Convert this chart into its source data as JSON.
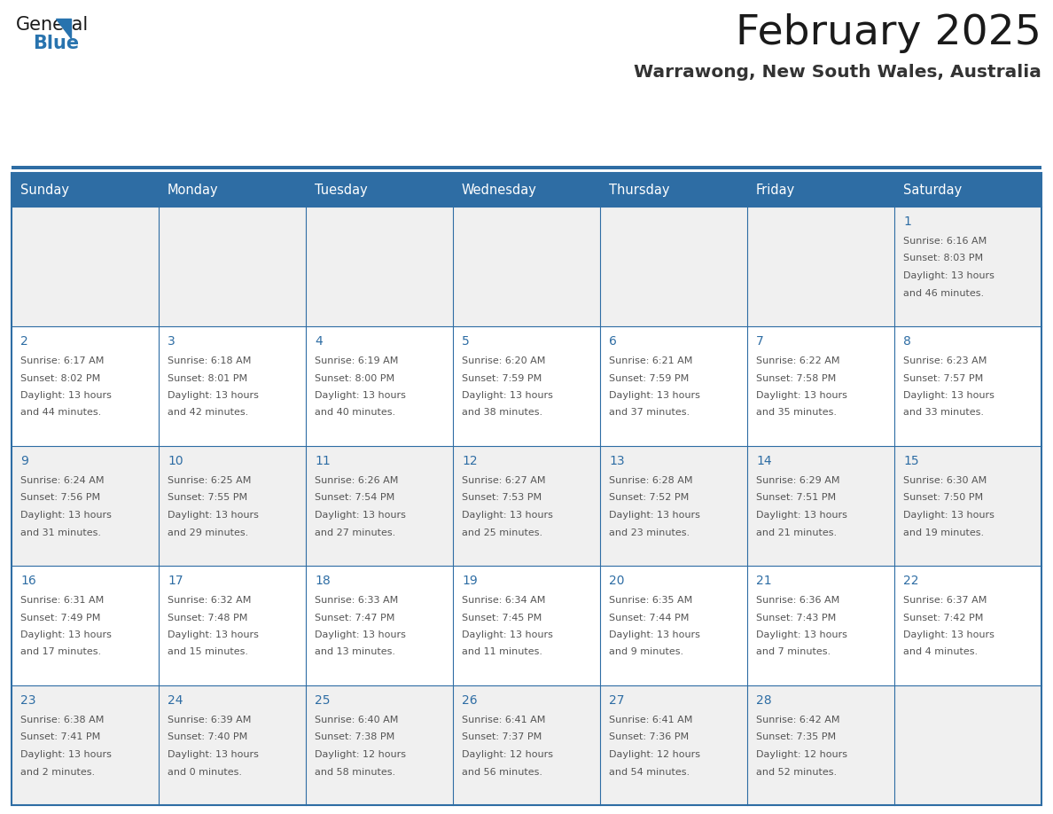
{
  "title": "February 2025",
  "subtitle": "Warrawong, New South Wales, Australia",
  "days_of_week": [
    "Sunday",
    "Monday",
    "Tuesday",
    "Wednesday",
    "Thursday",
    "Friday",
    "Saturday"
  ],
  "header_bg": "#2E6DA4",
  "header_text": "#FFFFFF",
  "cell_bg_row0": "#F0F0F0",
  "cell_bg_row1": "#FFFFFF",
  "cell_bg_row2": "#F0F0F0",
  "cell_bg_row3": "#FFFFFF",
  "cell_bg_row4": "#F0F0F0",
  "border_color": "#2E6DA4",
  "day_num_color": "#2E6DA4",
  "text_color": "#555555",
  "title_color": "#1a1a1a",
  "subtitle_color": "#333333",
  "logo_general_color": "#1a1a1a",
  "logo_blue_color": "#2873AE",
  "fig_width": 11.88,
  "fig_height": 9.18,
  "dpi": 100,
  "calendar_data": [
    {
      "day": 1,
      "col": 6,
      "row": 0,
      "sunrise": "6:16 AM",
      "sunset": "8:03 PM",
      "daylight_h": "13 hours",
      "daylight_m": "and 46 minutes."
    },
    {
      "day": 2,
      "col": 0,
      "row": 1,
      "sunrise": "6:17 AM",
      "sunset": "8:02 PM",
      "daylight_h": "13 hours",
      "daylight_m": "and 44 minutes."
    },
    {
      "day": 3,
      "col": 1,
      "row": 1,
      "sunrise": "6:18 AM",
      "sunset": "8:01 PM",
      "daylight_h": "13 hours",
      "daylight_m": "and 42 minutes."
    },
    {
      "day": 4,
      "col": 2,
      "row": 1,
      "sunrise": "6:19 AM",
      "sunset": "8:00 PM",
      "daylight_h": "13 hours",
      "daylight_m": "and 40 minutes."
    },
    {
      "day": 5,
      "col": 3,
      "row": 1,
      "sunrise": "6:20 AM",
      "sunset": "7:59 PM",
      "daylight_h": "13 hours",
      "daylight_m": "and 38 minutes."
    },
    {
      "day": 6,
      "col": 4,
      "row": 1,
      "sunrise": "6:21 AM",
      "sunset": "7:59 PM",
      "daylight_h": "13 hours",
      "daylight_m": "and 37 minutes."
    },
    {
      "day": 7,
      "col": 5,
      "row": 1,
      "sunrise": "6:22 AM",
      "sunset": "7:58 PM",
      "daylight_h": "13 hours",
      "daylight_m": "and 35 minutes."
    },
    {
      "day": 8,
      "col": 6,
      "row": 1,
      "sunrise": "6:23 AM",
      "sunset": "7:57 PM",
      "daylight_h": "13 hours",
      "daylight_m": "and 33 minutes."
    },
    {
      "day": 9,
      "col": 0,
      "row": 2,
      "sunrise": "6:24 AM",
      "sunset": "7:56 PM",
      "daylight_h": "13 hours",
      "daylight_m": "and 31 minutes."
    },
    {
      "day": 10,
      "col": 1,
      "row": 2,
      "sunrise": "6:25 AM",
      "sunset": "7:55 PM",
      "daylight_h": "13 hours",
      "daylight_m": "and 29 minutes."
    },
    {
      "day": 11,
      "col": 2,
      "row": 2,
      "sunrise": "6:26 AM",
      "sunset": "7:54 PM",
      "daylight_h": "13 hours",
      "daylight_m": "and 27 minutes."
    },
    {
      "day": 12,
      "col": 3,
      "row": 2,
      "sunrise": "6:27 AM",
      "sunset": "7:53 PM",
      "daylight_h": "13 hours",
      "daylight_m": "and 25 minutes."
    },
    {
      "day": 13,
      "col": 4,
      "row": 2,
      "sunrise": "6:28 AM",
      "sunset": "7:52 PM",
      "daylight_h": "13 hours",
      "daylight_m": "and 23 minutes."
    },
    {
      "day": 14,
      "col": 5,
      "row": 2,
      "sunrise": "6:29 AM",
      "sunset": "7:51 PM",
      "daylight_h": "13 hours",
      "daylight_m": "and 21 minutes."
    },
    {
      "day": 15,
      "col": 6,
      "row": 2,
      "sunrise": "6:30 AM",
      "sunset": "7:50 PM",
      "daylight_h": "13 hours",
      "daylight_m": "and 19 minutes."
    },
    {
      "day": 16,
      "col": 0,
      "row": 3,
      "sunrise": "6:31 AM",
      "sunset": "7:49 PM",
      "daylight_h": "13 hours",
      "daylight_m": "and 17 minutes."
    },
    {
      "day": 17,
      "col": 1,
      "row": 3,
      "sunrise": "6:32 AM",
      "sunset": "7:48 PM",
      "daylight_h": "13 hours",
      "daylight_m": "and 15 minutes."
    },
    {
      "day": 18,
      "col": 2,
      "row": 3,
      "sunrise": "6:33 AM",
      "sunset": "7:47 PM",
      "daylight_h": "13 hours",
      "daylight_m": "and 13 minutes."
    },
    {
      "day": 19,
      "col": 3,
      "row": 3,
      "sunrise": "6:34 AM",
      "sunset": "7:45 PM",
      "daylight_h": "13 hours",
      "daylight_m": "and 11 minutes."
    },
    {
      "day": 20,
      "col": 4,
      "row": 3,
      "sunrise": "6:35 AM",
      "sunset": "7:44 PM",
      "daylight_h": "13 hours",
      "daylight_m": "and 9 minutes."
    },
    {
      "day": 21,
      "col": 5,
      "row": 3,
      "sunrise": "6:36 AM",
      "sunset": "7:43 PM",
      "daylight_h": "13 hours",
      "daylight_m": "and 7 minutes."
    },
    {
      "day": 22,
      "col": 6,
      "row": 3,
      "sunrise": "6:37 AM",
      "sunset": "7:42 PM",
      "daylight_h": "13 hours",
      "daylight_m": "and 4 minutes."
    },
    {
      "day": 23,
      "col": 0,
      "row": 4,
      "sunrise": "6:38 AM",
      "sunset": "7:41 PM",
      "daylight_h": "13 hours",
      "daylight_m": "and 2 minutes."
    },
    {
      "day": 24,
      "col": 1,
      "row": 4,
      "sunrise": "6:39 AM",
      "sunset": "7:40 PM",
      "daylight_h": "13 hours",
      "daylight_m": "and 0 minutes."
    },
    {
      "day": 25,
      "col": 2,
      "row": 4,
      "sunrise": "6:40 AM",
      "sunset": "7:38 PM",
      "daylight_h": "12 hours",
      "daylight_m": "and 58 minutes."
    },
    {
      "day": 26,
      "col": 3,
      "row": 4,
      "sunrise": "6:41 AM",
      "sunset": "7:37 PM",
      "daylight_h": "12 hours",
      "daylight_m": "and 56 minutes."
    },
    {
      "day": 27,
      "col": 4,
      "row": 4,
      "sunrise": "6:41 AM",
      "sunset": "7:36 PM",
      "daylight_h": "12 hours",
      "daylight_m": "and 54 minutes."
    },
    {
      "day": 28,
      "col": 5,
      "row": 4,
      "sunrise": "6:42 AM",
      "sunset": "7:35 PM",
      "daylight_h": "12 hours",
      "daylight_m": "and 52 minutes."
    }
  ]
}
